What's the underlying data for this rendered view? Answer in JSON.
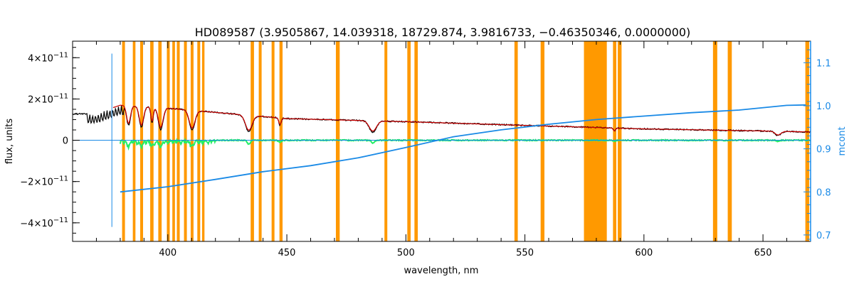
{
  "chart_data": {
    "type": "line",
    "title": "HD089587    (3.9505867, 14.039318, 18729.874, 3.9816733, −0.46350346, 0.0000000)",
    "xlabel": "wavelength, nm",
    "ylabel": "flux, units",
    "y2label": "mcont",
    "xlim": [
      360,
      670
    ],
    "ylim": [
      -4.9e-11,
      4.8e-11
    ],
    "y2lim": [
      0.685,
      1.15
    ],
    "xticks": [
      {
        "v": 400,
        "label": "400"
      },
      {
        "v": 450,
        "label": "450"
      },
      {
        "v": 500,
        "label": "500"
      },
      {
        "v": 550,
        "label": "550"
      },
      {
        "v": 600,
        "label": "600"
      },
      {
        "v": 650,
        "label": "650"
      }
    ],
    "yticks": [
      {
        "v": 4e-11,
        "m": "4",
        "e": "−11"
      },
      {
        "v": 2e-11,
        "m": "2",
        "e": "−11"
      },
      {
        "v": 0,
        "m": "0",
        "e": ""
      },
      {
        "v": -2e-11,
        "m": "−2",
        "e": "−11"
      },
      {
        "v": -4e-11,
        "m": "−4",
        "e": "−11"
      }
    ],
    "y2ticks": [
      {
        "v": 0.7,
        "label": "0.7"
      },
      {
        "v": 0.8,
        "label": "0.8"
      },
      {
        "v": 0.9,
        "label": "0.9"
      },
      {
        "v": 1.0,
        "label": "1.0"
      },
      {
        "v": 1.1,
        "label": "1.1"
      }
    ],
    "masks": [
      [
        380.8,
        382.0
      ],
      [
        385.3,
        386.4
      ],
      [
        388.4,
        389.6
      ],
      [
        392.6,
        394.0
      ],
      [
        396.0,
        397.4
      ],
      [
        399.6,
        400.8
      ],
      [
        401.9,
        403.0
      ],
      [
        403.8,
        405.0
      ],
      [
        406.8,
        408.0
      ],
      [
        409.6,
        410.8
      ],
      [
        412.4,
        413.6
      ],
      [
        414.4,
        415.4
      ],
      [
        434.8,
        436.2
      ],
      [
        438.2,
        439.4
      ],
      [
        443.6,
        444.8
      ],
      [
        446.9,
        448.2
      ],
      [
        470.6,
        472.2
      ],
      [
        491.0,
        492.2
      ],
      [
        500.6,
        502.0
      ],
      [
        503.6,
        505.0
      ],
      [
        545.6,
        547.0
      ],
      [
        556.6,
        558.2
      ],
      [
        574.8,
        584.4
      ],
      [
        587.0,
        588.4
      ],
      [
        589.0,
        590.6
      ],
      [
        629.0,
        630.8
      ],
      [
        635.2,
        636.9
      ],
      [
        667.8,
        669.4
      ]
    ],
    "vline": {
      "x": 376.5,
      "ymin": -4.2e-11,
      "ymax": 4.2e-11
    },
    "series": [
      {
        "role": "observed",
        "color": "#000000",
        "continuum": [
          [
            360,
            1.27e-11
          ],
          [
            370,
            1.3e-11
          ],
          [
            380,
            1.7e-11
          ],
          [
            400,
            1.55e-11
          ],
          [
            450,
            1.05e-11
          ],
          [
            500,
            9e-12
          ],
          [
            550,
            7.2e-12
          ],
          [
            600,
            5.5e-12
          ],
          [
            650,
            4.5e-12
          ],
          [
            670,
            4e-12
          ]
        ],
        "lines": [
          {
            "c": 383.5,
            "d": 9.5e-12,
            "w": 0.8
          },
          {
            "c": 388.9,
            "d": 1e-11,
            "w": 0.9
          },
          {
            "c": 393.4,
            "d": 7.5e-12,
            "w": 0.5
          },
          {
            "c": 397.0,
            "d": 1.05e-11,
            "w": 1.0
          },
          {
            "c": 410.2,
            "d": 9.5e-12,
            "w": 1.2
          },
          {
            "c": 434.0,
            "d": 8e-12,
            "w": 1.4
          },
          {
            "c": 447.1,
            "d": 3.5e-12,
            "w": 0.5
          },
          {
            "c": 486.1,
            "d": 5.5e-12,
            "w": 1.5
          },
          {
            "c": 587.6,
            "d": 1.5e-12,
            "w": 0.5
          },
          {
            "c": 656.3,
            "d": 2e-12,
            "w": 1.2
          }
        ]
      },
      {
        "role": "model",
        "color": "#cc0000",
        "xrange": [
          377,
          670
        ]
      },
      {
        "role": "residual",
        "color": "#22ee66",
        "xrange": [
          380,
          670
        ]
      },
      {
        "role": "mcont",
        "color": "#1a8ae6",
        "axis": "right",
        "x": [
          380,
          400,
          420,
          440,
          460,
          480,
          500,
          520,
          540,
          560,
          580,
          600,
          620,
          640,
          660,
          668
        ],
        "values": [
          0.8,
          0.812,
          0.829,
          0.847,
          0.861,
          0.879,
          0.903,
          0.928,
          0.944,
          0.957,
          0.968,
          0.976,
          0.984,
          0.99,
          1.001,
          1.002
        ]
      }
    ]
  }
}
